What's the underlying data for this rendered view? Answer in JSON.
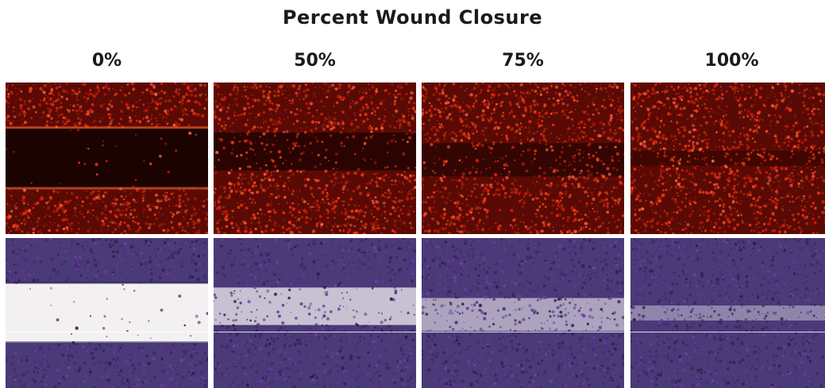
{
  "figure": {
    "title": "Percent Wound Closure",
    "columns": [
      {
        "label": "0%",
        "closure_fraction": 0.0
      },
      {
        "label": "50%",
        "closure_fraction": 0.5
      },
      {
        "label": "75%",
        "closure_fraction": 0.75
      },
      {
        "label": "100%",
        "closure_fraction": 1.0
      }
    ],
    "rows": [
      {
        "name": "fluorescence",
        "cell_color": "#e8321a",
        "gap_color": "#1a0301",
        "background": "#5a0a05"
      },
      {
        "name": "crystal-violet-stain",
        "cell_color": "#3a2868",
        "gap_color": "#f3f0f2",
        "background": "#4a3a78"
      }
    ]
  }
}
